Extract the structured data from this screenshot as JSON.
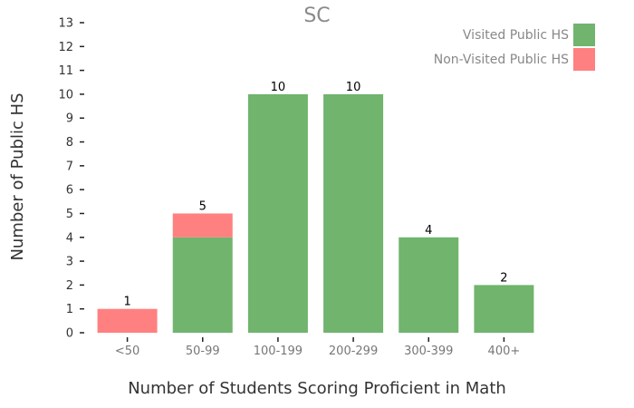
{
  "chart_data": {
    "type": "bar",
    "stacked": true,
    "title": "SC",
    "xlabel": "Number of Students Scoring Proficient in Math",
    "ylabel": "Number of Public HS",
    "categories": [
      "<50",
      "50-99",
      "100-199",
      "200-299",
      "300-399",
      "400+"
    ],
    "series": [
      {
        "name": "Visited Public HS",
        "color": "#70b46e",
        "values": [
          0,
          4,
          10,
          10,
          4,
          2
        ]
      },
      {
        "name": "Non-Visited Public HS",
        "color": "#ff8080",
        "values": [
          1,
          1,
          0,
          0,
          0,
          0
        ]
      }
    ],
    "totals": [
      1,
      5,
      10,
      10,
      4,
      2
    ],
    "ylim": [
      0,
      13
    ],
    "yticks": [
      0,
      1,
      2,
      3,
      4,
      5,
      6,
      7,
      8,
      9,
      10,
      11,
      12,
      13
    ],
    "grid": false,
    "legend_position": "top-right"
  }
}
